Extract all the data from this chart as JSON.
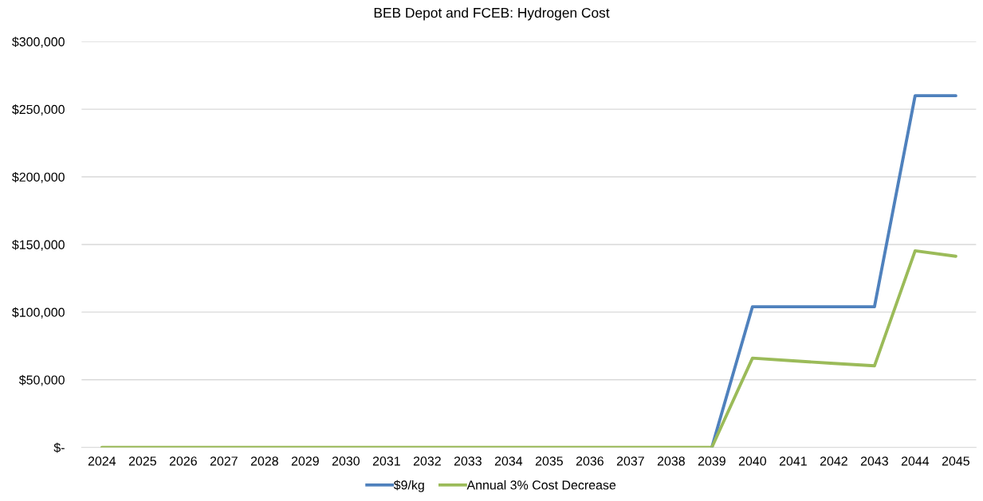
{
  "chart_data": {
    "type": "line",
    "title": "BEB Depot and FCEB: Hydrogen Cost",
    "categories": [
      "2024",
      "2025",
      "2026",
      "2027",
      "2028",
      "2029",
      "2030",
      "2031",
      "2032",
      "2033",
      "2034",
      "2035",
      "2036",
      "2037",
      "2038",
      "2039",
      "2040",
      "2041",
      "2042",
      "2043",
      "2044",
      "2045"
    ],
    "series": [
      {
        "name": "$9/kg",
        "color": "#4f81bd",
        "values": [
          null,
          null,
          null,
          null,
          null,
          null,
          null,
          null,
          null,
          null,
          null,
          null,
          null,
          null,
          null,
          0,
          104000,
          104000,
          104000,
          104000,
          260000,
          260000
        ]
      },
      {
        "name": "Annual 3% Cost Decrease",
        "color": "#9bbb59",
        "values": [
          0,
          0,
          0,
          0,
          0,
          0,
          0,
          0,
          0,
          0,
          0,
          0,
          0,
          0,
          0,
          0,
          66000,
          64000,
          62100,
          60300,
          145300,
          141300
        ]
      }
    ],
    "ylim": [
      0,
      300000
    ],
    "yticks": [
      {
        "value": 0,
        "label": "$-"
      },
      {
        "value": 50000,
        "label": "$50,000"
      },
      {
        "value": 100000,
        "label": "$100,000"
      },
      {
        "value": 150000,
        "label": "$150,000"
      },
      {
        "value": 200000,
        "label": "$200,000"
      },
      {
        "value": 250000,
        "label": "$250,000"
      },
      {
        "value": 300000,
        "label": "$300,000"
      }
    ],
    "grid": "y",
    "legend": "bottom",
    "marker": "none",
    "line_style": "solid"
  }
}
